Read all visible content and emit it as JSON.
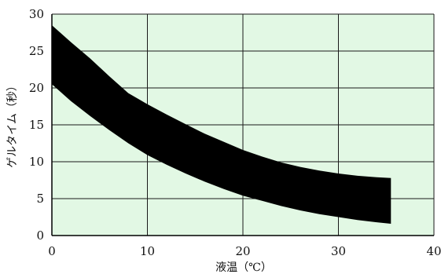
{
  "chart_data": {
    "type": "area",
    "title": "",
    "xlabel": "液温（℃）",
    "ylabel": "ゲルタイム（秒）",
    "xlim": [
      0,
      40
    ],
    "ylim": [
      0,
      30
    ],
    "x_ticks": [
      0,
      10,
      20,
      30,
      40
    ],
    "y_ticks": [
      0,
      5,
      10,
      15,
      20,
      25,
      30
    ],
    "grid": true,
    "colors": {
      "plot_background": "#e2f8e4",
      "band": "#000000",
      "grid": "#1a1a1a"
    },
    "series": [
      {
        "x": [
          0,
          2,
          4,
          6,
          8,
          10,
          12,
          14,
          16,
          18,
          20,
          22,
          24,
          26,
          28,
          30,
          32,
          34,
          35.5
        ],
        "upper": [
          28.5,
          26.2,
          24.0,
          21.6,
          19.3,
          17.8,
          16.4,
          15.1,
          13.8,
          12.7,
          11.6,
          10.7,
          9.9,
          9.3,
          8.8,
          8.4,
          8.1,
          7.9,
          7.8
        ],
        "lower": [
          20.5,
          18.2,
          16.2,
          14.3,
          12.5,
          10.9,
          9.6,
          8.4,
          7.3,
          6.3,
          5.4,
          4.7,
          4.0,
          3.4,
          2.9,
          2.5,
          2.1,
          1.8,
          1.6
        ]
      }
    ]
  }
}
